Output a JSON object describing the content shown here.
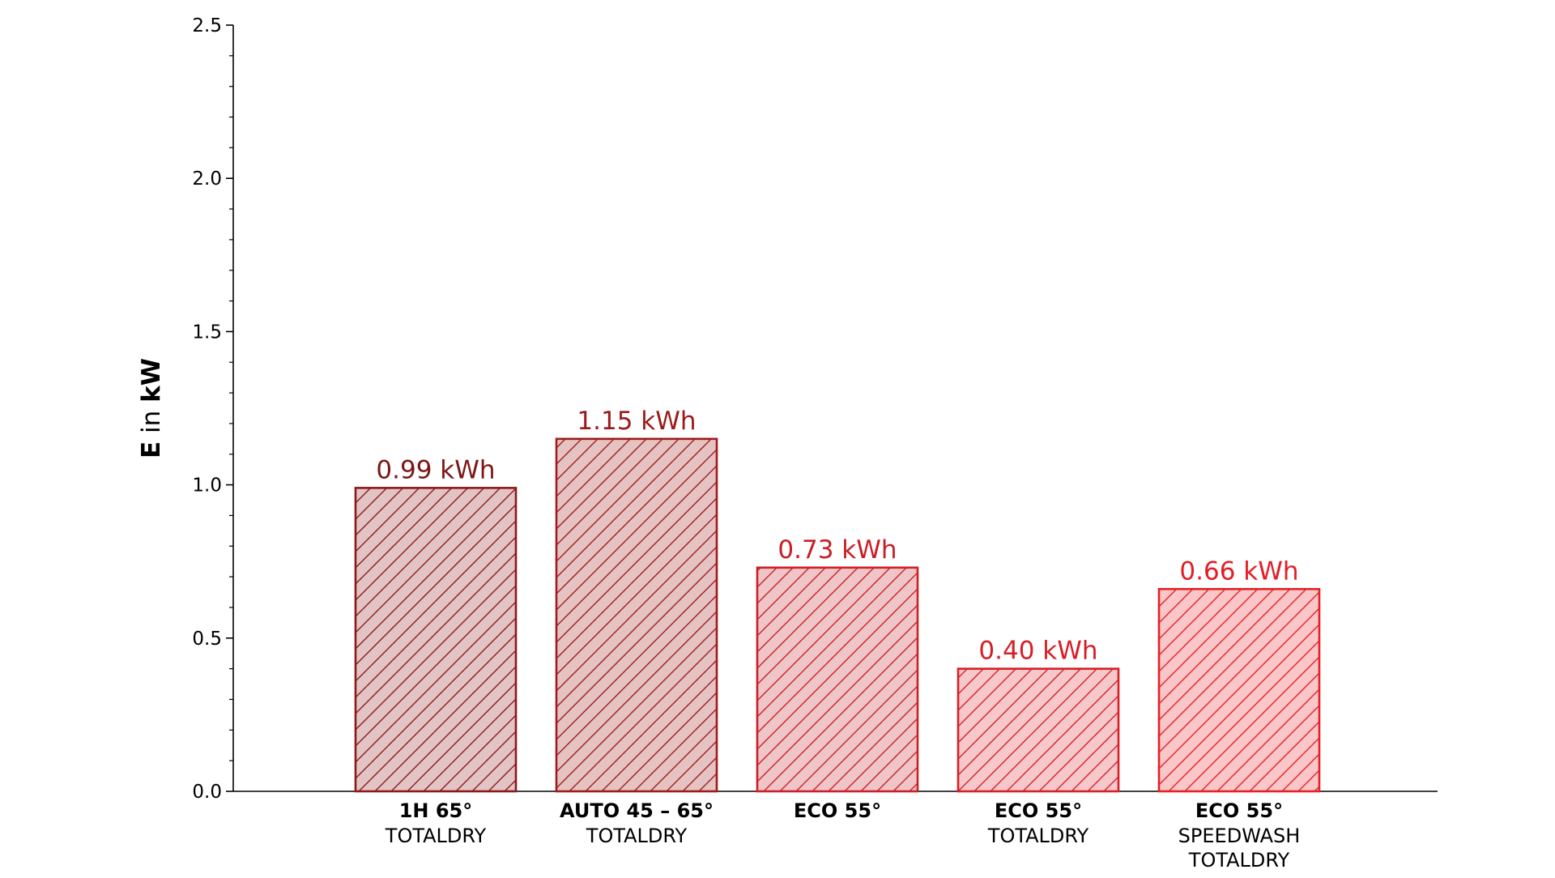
{
  "chart_data": {
    "type": "bar",
    "ylabel": {
      "bold_part": "E",
      "normal_part": " in ",
      "unit_bold": "kW"
    },
    "ylim": [
      0,
      2.5
    ],
    "yticks": [
      "0.0",
      "0.5",
      "1.0",
      "1.5",
      "2.0",
      "2.5"
    ],
    "grid": false,
    "legend": "none",
    "categories": [
      {
        "title": "1H 65°",
        "subtitle": [
          "TOTALDRY"
        ]
      },
      {
        "title": "AUTO 45 – 65°",
        "subtitle": [
          "TOTALDRY"
        ]
      },
      {
        "title": "ECO 55°",
        "subtitle": []
      },
      {
        "title": "ECO 55°",
        "subtitle": [
          "TOTALDRY"
        ]
      },
      {
        "title": "ECO 55°",
        "subtitle": [
          "SPEEDWASH",
          "TOTALDRY"
        ]
      }
    ],
    "values": [
      0.99,
      1.15,
      0.73,
      0.4,
      0.66
    ],
    "data_labels": [
      "0.99 kWh",
      "1.15 kWh",
      "0.73 kWh",
      "0.40 kWh",
      "0.66 kWh"
    ],
    "colors": {
      "edges": [
        "#8b1a1a",
        "#a01c1c",
        "#cc1f27",
        "#d91f27",
        "#e52027"
      ],
      "fills": [
        "#e3c4c4",
        "#e5c3c3",
        "#f0c5c7",
        "#f6c8ca",
        "#fac6c8"
      ],
      "labels": [
        "#7d1616",
        "#9b1b1b",
        "#c81e26",
        "#d61e26",
        "#e31d25"
      ]
    }
  }
}
